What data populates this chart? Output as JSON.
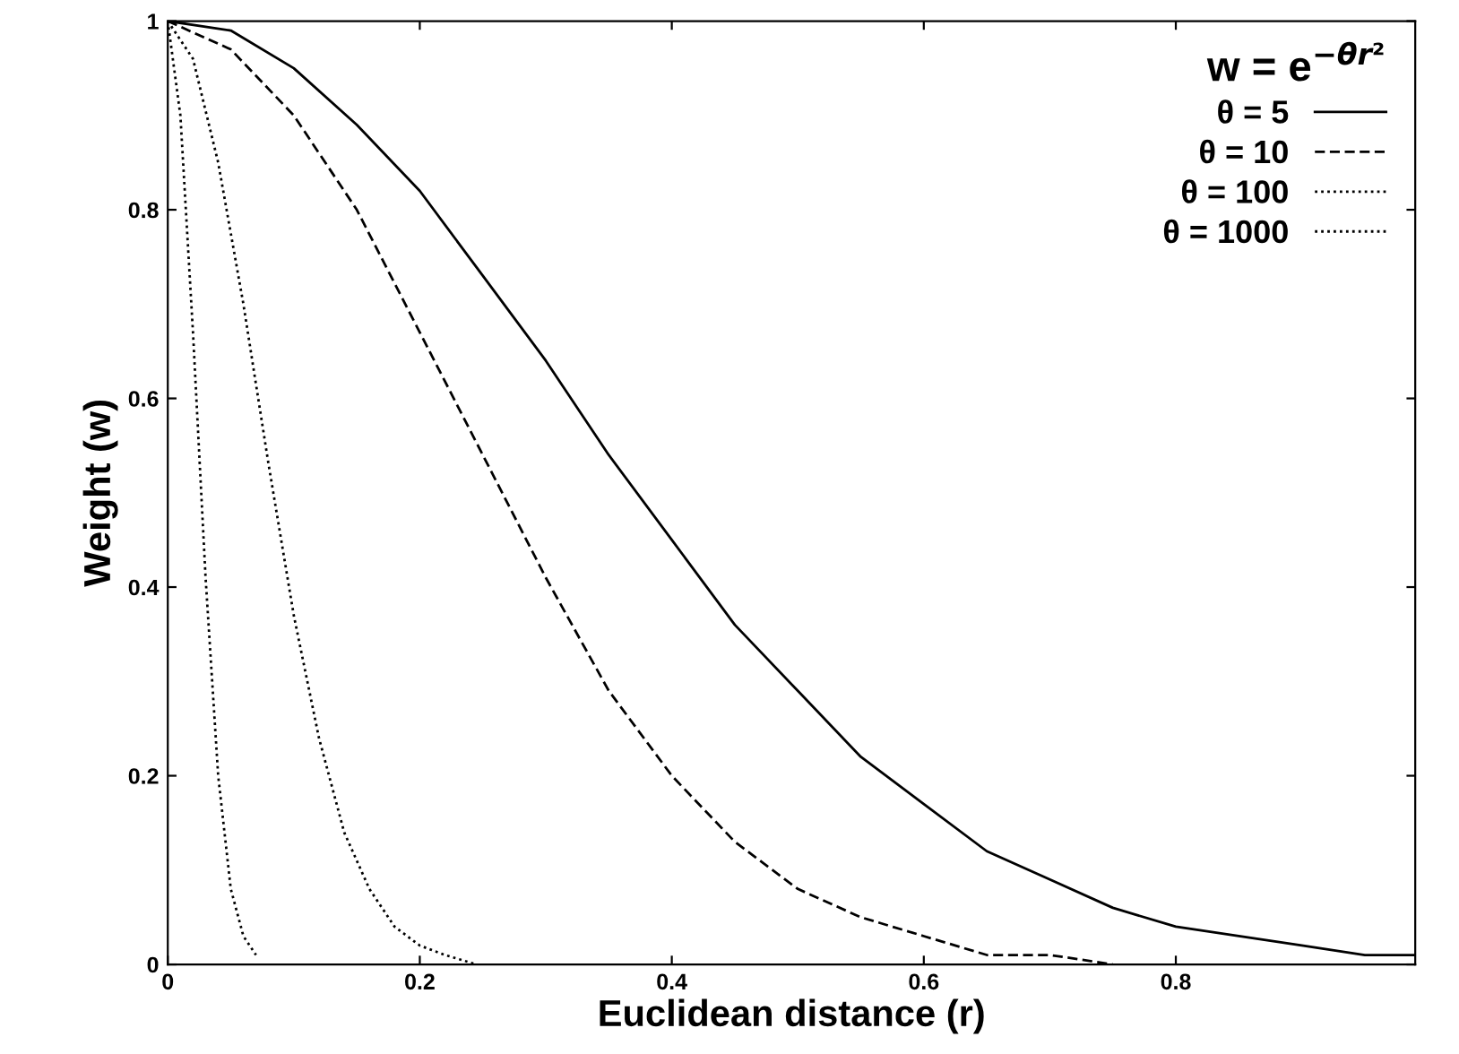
{
  "chart_data": {
    "type": "line",
    "xlabel": "Euclidean distance (r)",
    "ylabel": "Weight (w)",
    "legend_title": "w = e$^{−θr²}$",
    "legend": "top right",
    "grid": false,
    "xlim": [
      0,
      0.99
    ],
    "xticks": [
      0,
      0.2,
      0.4,
      0.6,
      0.8
    ],
    "ylim": [
      0,
      1
    ],
    "yticks": [
      0,
      0.2,
      0.4,
      0.6,
      0.8,
      1
    ],
    "series": [
      {
        "name": "θ = 5",
        "color": "#000000",
        "line_style": "solid",
        "x": [
          0,
          0.05,
          0.1,
          0.15,
          0.2,
          0.25,
          0.3,
          0.35,
          0.4,
          0.45,
          0.5,
          0.55,
          0.6,
          0.65,
          0.7,
          0.75,
          0.8,
          0.85,
          0.9,
          0.95,
          0.99
        ],
        "values": [
          1,
          0.99,
          0.95,
          0.89,
          0.82,
          0.73,
          0.64,
          0.54,
          0.45,
          0.36,
          0.29,
          0.22,
          0.17,
          0.12,
          0.09,
          0.06,
          0.04,
          0.03,
          0.02,
          0.01,
          0.01
        ]
      },
      {
        "name": "θ = 10",
        "color": "#000000",
        "line_style": "dashed",
        "x": [
          0,
          0.05,
          0.1,
          0.15,
          0.2,
          0.25,
          0.3,
          0.35,
          0.4,
          0.45,
          0.5,
          0.55,
          0.6,
          0.65,
          0.7,
          0.75
        ],
        "values": [
          1,
          0.97,
          0.9,
          0.8,
          0.67,
          0.54,
          0.41,
          0.29,
          0.2,
          0.13,
          0.08,
          0.05,
          0.03,
          0.01,
          0.01,
          0
        ]
      },
      {
        "name": "θ = 100",
        "color": "#000000",
        "line_style": "dotted",
        "x": [
          0,
          0.02,
          0.04,
          0.06,
          0.08,
          0.1,
          0.12,
          0.14,
          0.16,
          0.18,
          0.2,
          0.22,
          0.245
        ],
        "values": [
          1,
          0.96,
          0.85,
          0.7,
          0.53,
          0.37,
          0.24,
          0.14,
          0.08,
          0.04,
          0.02,
          0.01,
          0
        ]
      },
      {
        "name": "θ = 1000",
        "color": "#000000",
        "line_style": "dotted",
        "x": [
          0,
          0.01,
          0.02,
          0.03,
          0.04,
          0.05,
          0.06,
          0.07
        ],
        "values": [
          1,
          0.9,
          0.67,
          0.41,
          0.2,
          0.08,
          0.03,
          0.01
        ]
      }
    ]
  }
}
